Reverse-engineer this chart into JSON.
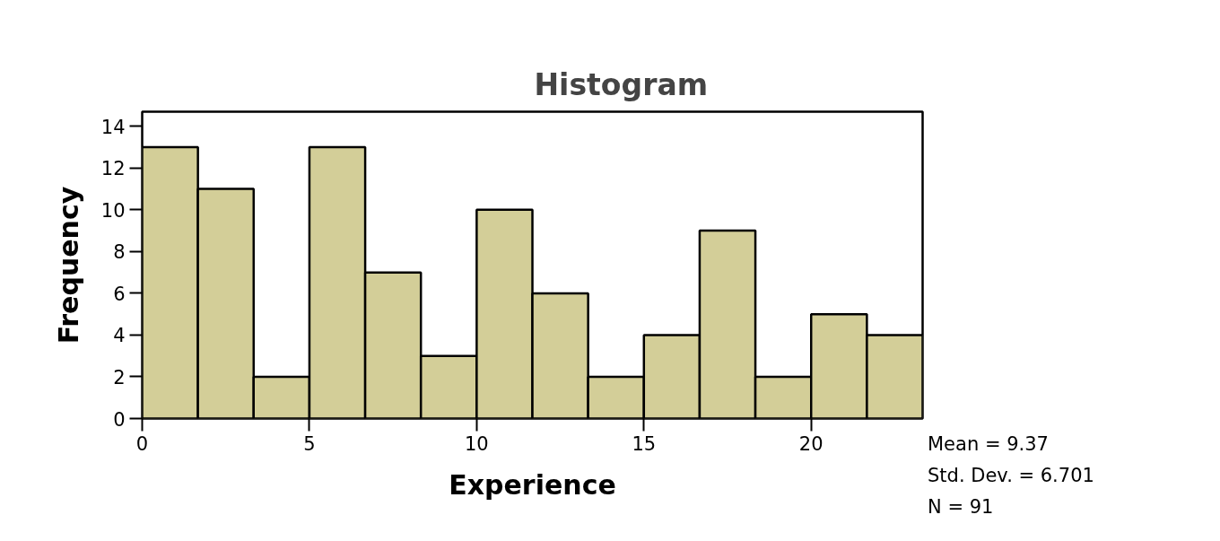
{
  "chart_data": {
    "type": "histogram",
    "title": "Histogram",
    "xlabel": "Experience",
    "ylabel": "Frequency",
    "bins": [
      0,
      1.667,
      3.333,
      5,
      6.667,
      8.333,
      10,
      11.667,
      13.333,
      15,
      16.667,
      18.333,
      20,
      21.667,
      23.333
    ],
    "values": [
      13,
      11,
      2,
      13,
      7,
      3,
      10,
      6,
      2,
      4,
      9,
      2,
      5,
      4
    ],
    "color": "#d3ce98",
    "xlim": [
      0,
      23.333
    ],
    "xticks": [
      0,
      5,
      10,
      15,
      20
    ],
    "ylim": [
      0,
      14.7
    ],
    "yticks": [
      0,
      2,
      4,
      6,
      8,
      10,
      12,
      14
    ],
    "grid": false,
    "annotations": [
      "Mean = 9.37",
      "Std. Dev. = 6.701",
      "N = 91"
    ]
  }
}
